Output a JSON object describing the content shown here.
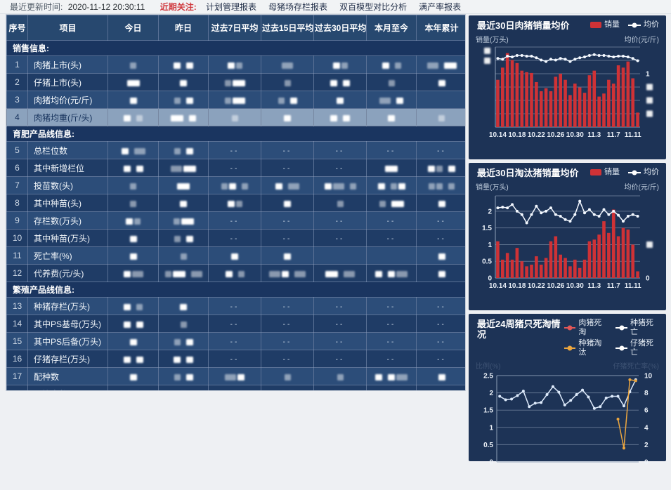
{
  "topbar": {
    "updated_label": "最近更新时间:",
    "updated_time": "2020-11-12 20:30:11",
    "focus_label": "近期关注:",
    "links": [
      "计划管理报表",
      "母猪场存栏报表",
      "双百模型对比分析",
      "满产率报表"
    ]
  },
  "table": {
    "columns": [
      "序号",
      "项目",
      "今日",
      "昨日",
      "过去7日平均",
      "过去15日平均",
      "过去30日平均",
      "本月至今",
      "本年累计"
    ],
    "values_redacted": true,
    "sections": [
      {
        "title": "销售信息:",
        "rows": [
          {
            "no": "1",
            "item": "肉猪上市(头)",
            "highlight": false,
            "cells": [
              "s",
              "S S",
              "Ss",
              "m",
              "Ss",
              "S s",
              "m M"
            ]
          },
          {
            "no": "2",
            "item": "仔猪上市(头)",
            "highlight": false,
            "cells": [
              "M",
              "S",
              "sM",
              "s",
              "S S",
              "s",
              "S"
            ]
          },
          {
            "no": "3",
            "item": "肉猪均价(元/斤)",
            "highlight": false,
            "cells": [
              "S",
              "s S",
              "sM",
              "s S",
              "S",
              "m S",
              ""
            ]
          },
          {
            "no": "4",
            "item": "肉猪均重(斤/头)",
            "highlight": true,
            "cells": [
              "S s",
              "M S",
              "s",
              "S",
              "S S",
              "S",
              "s"
            ]
          }
        ]
      },
      {
        "title": "育肥产品线信息:",
        "rows": [
          {
            "no": "5",
            "item": "总栏位数",
            "highlight": false,
            "cells": [
              "S m",
              "s S",
              "--",
              "--",
              "--",
              "--",
              "--"
            ]
          },
          {
            "no": "6",
            "item": "其中新增栏位",
            "highlight": false,
            "cells": [
              "S S",
              "mM",
              "--",
              "--",
              "--",
              "M",
              "Ss S"
            ]
          },
          {
            "no": "7",
            "item": "投苗数(头)",
            "highlight": false,
            "cells": [
              "s",
              "M",
              "sS s",
              "S m",
              "Sm s",
              "S sS",
              "ss s"
            ]
          },
          {
            "no": "8",
            "item": "其中种苗(头)",
            "highlight": false,
            "cells": [
              "s",
              "S",
              "Ss",
              "S",
              "s",
              "s M",
              "S"
            ]
          },
          {
            "no": "9",
            "item": "存栏数(万头)",
            "highlight": false,
            "cells": [
              "Ss",
              "sM",
              "--",
              "--",
              "--",
              "--",
              "--"
            ]
          },
          {
            "no": "10",
            "item": "其中种苗(万头)",
            "highlight": false,
            "cells": [
              "S",
              "s S",
              "--",
              "--",
              "--",
              "--",
              "--"
            ]
          },
          {
            "no": "11",
            "item": "死亡率(%)",
            "highlight": false,
            "cells": [
              "S",
              "s",
              "S",
              "S",
              "",
              "",
              "S"
            ]
          },
          {
            "no": "12",
            "item": "代养费(元/头)",
            "highlight": false,
            "cells": [
              "Sm",
              "sM m",
              "S s",
              "mS m",
              "M m",
              "S Sm",
              "S"
            ]
          }
        ]
      },
      {
        "title": "繁殖产品线信息:",
        "rows": [
          {
            "no": "13",
            "item": "种猪存栏(万头)",
            "highlight": false,
            "cells": [
              "S s",
              "S",
              "--",
              "--",
              "--",
              "--",
              "--"
            ]
          },
          {
            "no": "14",
            "item": "其中PS基母(万头)",
            "highlight": false,
            "cells": [
              "S S",
              "s",
              "--",
              "--",
              "--",
              "--",
              "--"
            ]
          },
          {
            "no": "15",
            "item": "其中PS后备(万头)",
            "highlight": false,
            "cells": [
              "S",
              "s S",
              "--",
              "--",
              "--",
              "--",
              "--"
            ]
          },
          {
            "no": "16",
            "item": "仔猪存栏(万头)",
            "highlight": false,
            "cells": [
              "S S",
              "S S",
              "--",
              "--",
              "--",
              "--",
              "--"
            ]
          },
          {
            "no": "17",
            "item": "配种数",
            "highlight": false,
            "cells": [
              "S",
              "s S",
              "mS",
              "s",
              "s",
              "S Sm",
              "S"
            ]
          },
          {
            "no": "18",
            "item": "分娩窝数",
            "highlight": false,
            "cells": [
              "M",
              "S",
              "s",
              "sS",
              "M",
              "s M",
              "mS"
            ]
          },
          {
            "no": "19",
            "item": "窝均活仔(头/窝)",
            "highlight": false,
            "cells": [
              "s s",
              "S s",
              "",
              "S",
              "Ss",
              "",
              "m"
            ]
          }
        ]
      }
    ]
  },
  "chart_data": [
    {
      "type": "bar+line",
      "title": "最近30日肉猪销量均价",
      "ylabel_left": "销量(万头)",
      "ylabel_right": "均价(元/斤)",
      "legend": [
        {
          "label": "销量",
          "series": "bar",
          "color": "#cf3236"
        },
        {
          "label": "均价",
          "series": "line",
          "color": "#ffffff"
        }
      ],
      "x": [
        "10.14",
        "10.15",
        "10.16",
        "10.17",
        "10.18",
        "10.19",
        "10.20",
        "10.21",
        "10.22",
        "10.23",
        "10.24",
        "10.25",
        "10.26",
        "10.27",
        "10.28",
        "10.29",
        "10.30",
        "10.31",
        "11.1",
        "11.2",
        "11.3",
        "11.4",
        "11.5",
        "11.6",
        "11.7",
        "11.8",
        "11.9",
        "11.10",
        "11.11",
        "11.12"
      ],
      "x_tick_indices": [
        0,
        4,
        8,
        12,
        16,
        20,
        24,
        28
      ],
      "axis_labels_redacted": true,
      "ylim": [
        0,
        1.05
      ],
      "grid_divisions": 6,
      "bars": [
        0.62,
        0.78,
        0.97,
        0.88,
        0.84,
        0.74,
        0.72,
        0.71,
        0.59,
        0.47,
        0.51,
        0.47,
        0.66,
        0.7,
        0.62,
        0.42,
        0.57,
        0.52,
        0.45,
        0.68,
        0.74,
        0.4,
        0.44,
        0.62,
        0.57,
        0.81,
        0.78,
        0.86,
        0.64,
        0.19
      ],
      "line": [
        0.9,
        0.89,
        0.93,
        0.92,
        0.94,
        0.94,
        0.93,
        0.93,
        0.91,
        0.88,
        0.86,
        0.89,
        0.88,
        0.9,
        0.89,
        0.86,
        0.89,
        0.91,
        0.92,
        0.94,
        0.95,
        0.94,
        0.94,
        0.93,
        0.92,
        0.93,
        0.93,
        0.92,
        0.9,
        0.87
      ],
      "left_ticks": [
        {
          "v": 1.0,
          "blur": true
        },
        {
          "v": 0.87,
          "blur": true
        }
      ],
      "right_ticks": [
        {
          "v": 0.7,
          "label": "1"
        },
        {
          "v": 0.525,
          "blur": true
        },
        {
          "v": 0.35,
          "blur": true
        },
        {
          "v": 0.175,
          "blur": true
        }
      ]
    },
    {
      "type": "bar+line",
      "title": "最近30日淘汰猪销量均价",
      "ylabel_left": "销量(万头)",
      "ylabel_right": "均价(元/斤)",
      "legend": [
        {
          "label": "销量",
          "series": "bar",
          "color": "#cf3236"
        },
        {
          "label": "均价",
          "series": "line",
          "color": "#ffffff"
        }
      ],
      "x": [
        "10.14",
        "10.15",
        "10.16",
        "10.17",
        "10.18",
        "10.19",
        "10.20",
        "10.21",
        "10.22",
        "10.23",
        "10.24",
        "10.25",
        "10.26",
        "10.27",
        "10.28",
        "10.29",
        "10.30",
        "10.31",
        "11.1",
        "11.2",
        "11.3",
        "11.4",
        "11.5",
        "11.6",
        "11.7",
        "11.8",
        "11.9",
        "11.10",
        "11.11",
        "11.12"
      ],
      "x_tick_indices": [
        0,
        4,
        8,
        12,
        16,
        20,
        24,
        28
      ],
      "ylim": [
        0,
        2.46
      ],
      "grid_divisions": 0,
      "bars": [
        1.1,
        0.55,
        0.75,
        0.55,
        0.9,
        0.5,
        0.35,
        0.4,
        0.65,
        0.4,
        0.6,
        1.1,
        1.25,
        0.7,
        0.6,
        0.35,
        0.55,
        0.3,
        0.55,
        1.1,
        1.15,
        1.3,
        1.7,
        1.35,
        2.05,
        1.25,
        1.5,
        1.45,
        1.0,
        0.2
      ],
      "line": [
        2.1,
        2.12,
        2.1,
        2.2,
        2.0,
        1.9,
        1.65,
        1.9,
        2.15,
        1.95,
        2.0,
        2.1,
        1.9,
        1.85,
        1.75,
        1.7,
        1.9,
        2.3,
        1.95,
        2.05,
        1.9,
        1.85,
        2.05,
        1.9,
        2.0,
        1.88,
        1.7,
        1.85,
        1.9,
        1.85
      ],
      "left_ticks": [
        {
          "v": 2,
          "label": "2"
        },
        {
          "v": 1.5,
          "label": "1.5"
        },
        {
          "v": 1,
          "label": "1"
        },
        {
          "v": 0.5,
          "label": "0.5"
        },
        {
          "v": 0,
          "label": "0"
        }
      ],
      "right_ticks": [
        {
          "v": 1,
          "blur": true
        },
        {
          "v": 0,
          "label": "0"
        }
      ]
    },
    {
      "type": "line",
      "title": "最近24周猪只死淘情况",
      "ylabel_left": "比例(%)",
      "ylabel_right": "仔猪死亡率(%)",
      "legend": [
        {
          "label": "肉猪死淘",
          "color": "#e25757"
        },
        {
          "label": "种猪死亡",
          "color": "#ffffff"
        },
        {
          "label": "种猪淘汰",
          "color": "#eca63f"
        },
        {
          "label": "仔猪死亡",
          "color": "#ffffff"
        }
      ],
      "x_count": 24,
      "ylim_left": [
        0,
        2.5
      ],
      "ylim_right": [
        0,
        10
      ],
      "left_ticks": [
        {
          "v": 2.5,
          "label": "2.5"
        },
        {
          "v": 2,
          "label": "2"
        },
        {
          "v": 1.5,
          "label": "1.5"
        },
        {
          "v": 1,
          "label": "1"
        },
        {
          "v": 0.5,
          "label": "0.5"
        },
        {
          "v": 0,
          "label": "0"
        }
      ],
      "right_ticks": [
        {
          "v": 2.5,
          "label": "10"
        },
        {
          "v": 2,
          "label": "8"
        },
        {
          "v": 1.5,
          "label": "6"
        },
        {
          "v": 1,
          "label": "4"
        },
        {
          "v": 0.5,
          "label": "2"
        },
        {
          "v": 0,
          "label": "0"
        }
      ],
      "series": [
        {
          "name": "白色折线",
          "color": "#ddeafb",
          "values": [
            1.9,
            1.8,
            1.82,
            1.92,
            2.05,
            1.6,
            1.7,
            1.72,
            1.95,
            2.18,
            2.02,
            1.65,
            1.78,
            1.95,
            2.08,
            1.88,
            1.55,
            1.6,
            1.85,
            1.9,
            1.9,
            1.62,
            2.03,
            2.38
          ]
        },
        {
          "name": "种猪淘汰",
          "color": "#eca63f",
          "values": [
            null,
            null,
            null,
            null,
            null,
            null,
            null,
            null,
            null,
            null,
            null,
            null,
            null,
            null,
            null,
            null,
            null,
            null,
            null,
            null,
            1.24,
            0.4,
            2.38,
            2.35
          ]
        }
      ]
    }
  ]
}
